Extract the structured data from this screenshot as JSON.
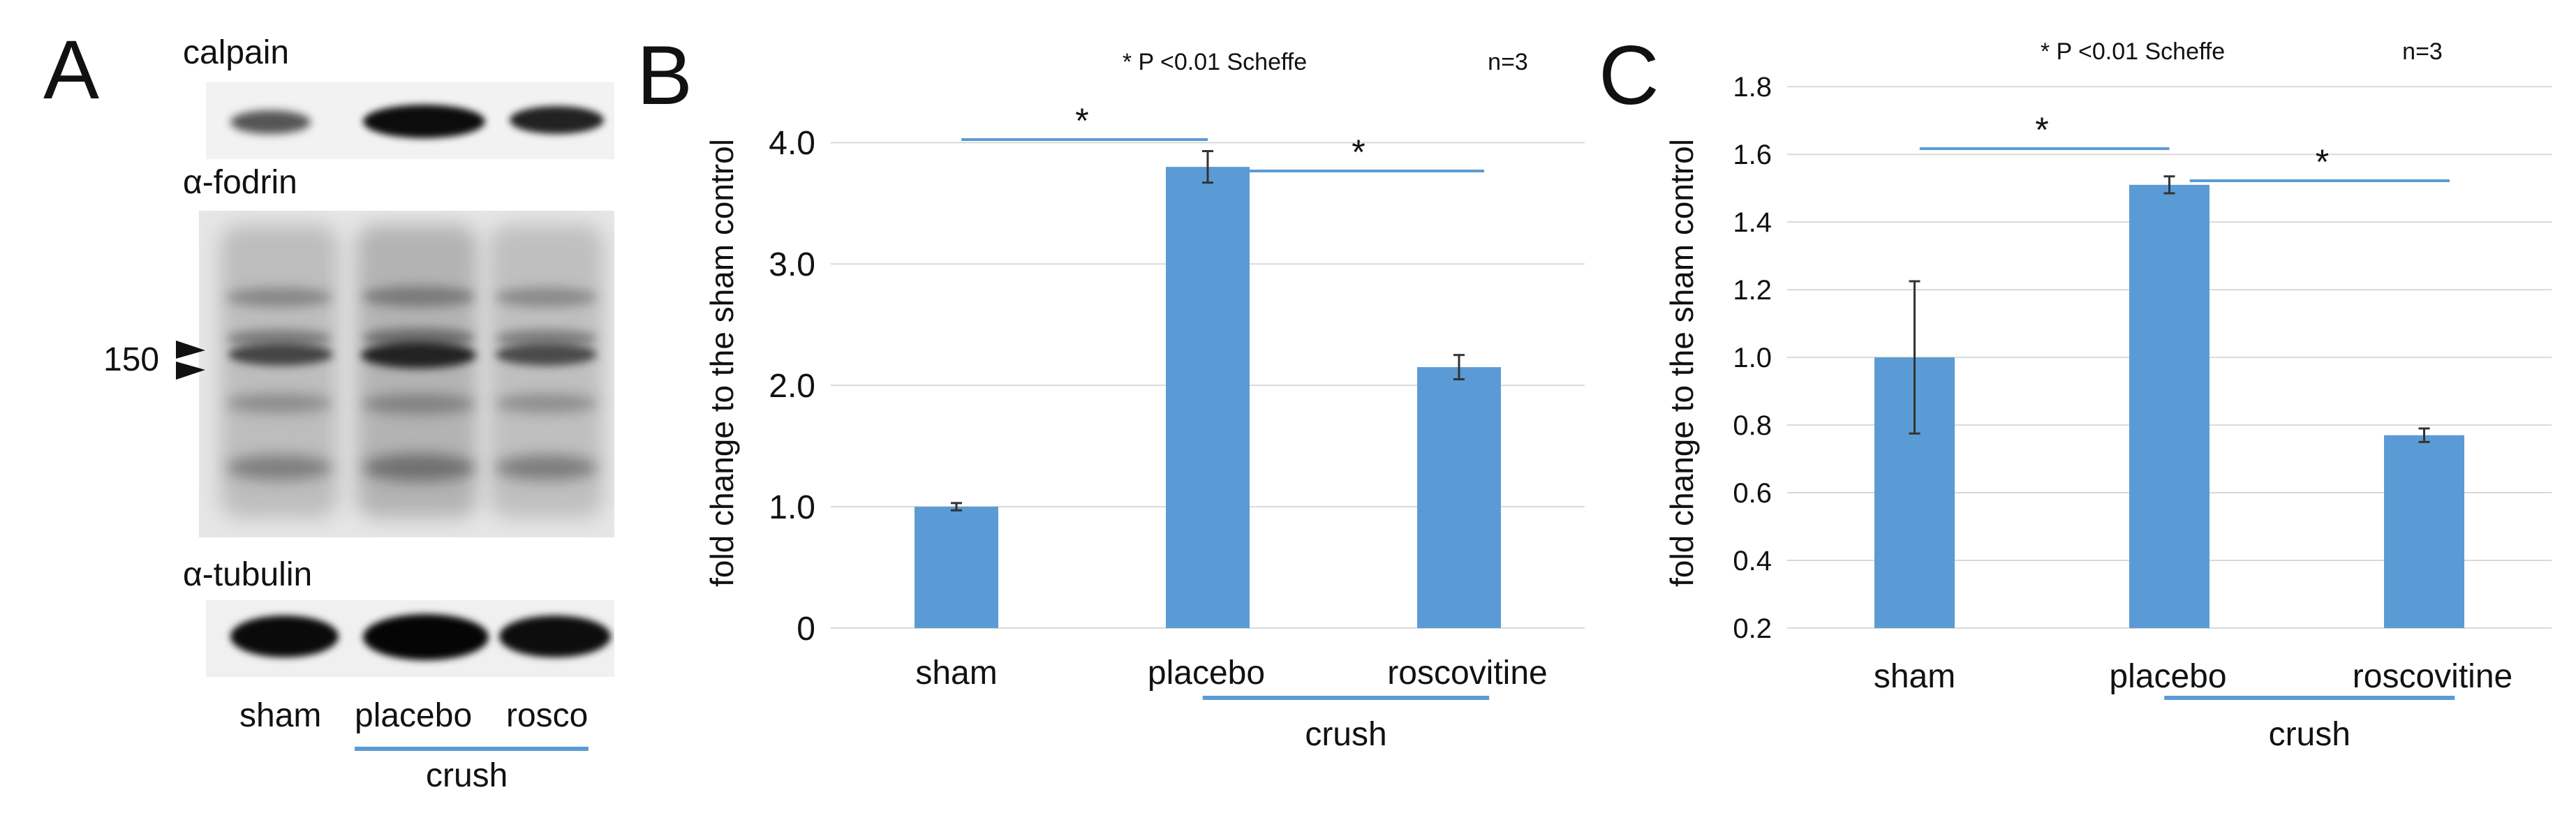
{
  "panel_a": {
    "letter": "A",
    "blots": [
      "calpain",
      "α-fodrin",
      "α-tubulin"
    ],
    "marker": "150",
    "lanes": [
      "sham",
      "placebo",
      "rosco"
    ],
    "group_label": "crush",
    "colors": {
      "group_line": "#5b9bd5"
    }
  },
  "chart_data": [
    {
      "panel": "B",
      "type": "bar",
      "categories": [
        "sham",
        "placebo",
        "roscovitine"
      ],
      "values": [
        1.0,
        3.8,
        2.15
      ],
      "errors": [
        0.03,
        0.13,
        0.1
      ],
      "ylabel": "fold change to the sham control",
      "xlabel": "",
      "group_label": "crush",
      "ylim": [
        0,
        4.6
      ],
      "yticks": [
        0,
        1.0,
        2.0,
        3.0,
        4.0
      ],
      "ytick_labels": [
        "0",
        "1.0",
        "2.0",
        "3.0",
        "4.0"
      ],
      "annotation": "* P <0.01 Scheffe",
      "n_label": "n=3",
      "sig_marks": [
        "*",
        "*"
      ],
      "grid": true,
      "bar_color": "#5b9bd5"
    },
    {
      "panel": "C",
      "type": "bar",
      "categories": [
        "sham",
        "placebo",
        "roscovitine"
      ],
      "values": [
        1.0,
        1.51,
        0.77
      ],
      "errors": [
        0.225,
        0.025,
        0.02
      ],
      "ylabel": "fold change to the sham control",
      "xlabel": "",
      "group_label": "crush",
      "ylim": [
        0.2,
        1.85
      ],
      "yticks": [
        0.2,
        0.4,
        0.6,
        0.8,
        1.0,
        1.2,
        1.4,
        1.6,
        1.8
      ],
      "ytick_labels": [
        "0.2",
        "0.4",
        "0.6",
        "0.8",
        "1.0",
        "1.2",
        "1.4",
        "1.6",
        "1.8"
      ],
      "annotation": "* P <0.01 Scheffe",
      "n_label": "n=3",
      "sig_marks": [
        "*",
        "*"
      ],
      "grid": true,
      "bar_color": "#5b9bd5"
    }
  ]
}
